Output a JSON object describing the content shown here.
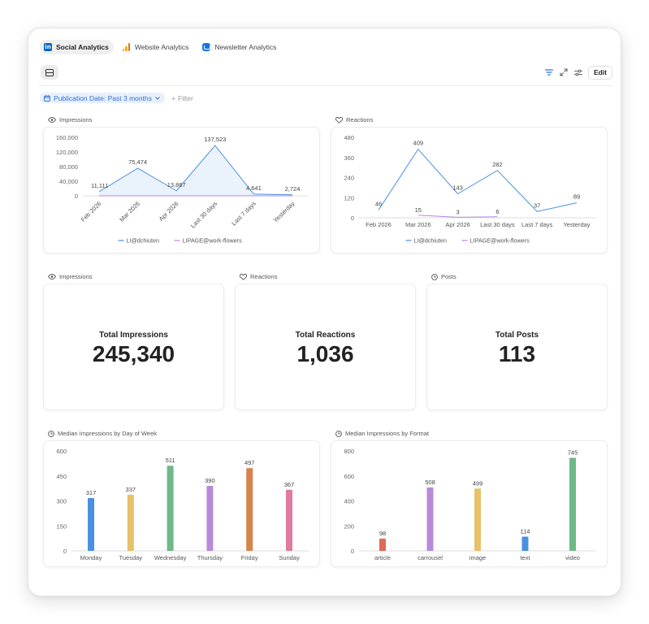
{
  "tabs": [
    {
      "label": "Social Analytics",
      "active": true,
      "icon": "linkedin-icon"
    },
    {
      "label": "Website Analytics",
      "active": false,
      "icon": "bar-chart-icon"
    },
    {
      "label": "Newsletter Analytics",
      "active": false,
      "icon": "newsletter-icon"
    }
  ],
  "toolbar": {
    "edit_label": "Edit"
  },
  "filters": {
    "chip_label": "Publication Date: Past 3 months",
    "add_label": "Filter"
  },
  "colors": {
    "blue": "#4a90e2",
    "purple": "#b98ad9",
    "green": "#6fb888",
    "yellow": "#e8c169",
    "orange": "#d9834c",
    "pink": "#e07a9e",
    "red": "#e06857",
    "accent": "#2f6fd6"
  },
  "sections": {
    "impressions": "Impressions",
    "reactions": "Reactions",
    "posts": "Posts",
    "median_day": "Median Impressions by Day of Week",
    "median_format": "Median Impressions by Format"
  },
  "kpis": {
    "impressions": {
      "label": "Total Impressions",
      "value": "245,340"
    },
    "reactions": {
      "label": "Total Reactions",
      "value": "1,036"
    },
    "posts": {
      "label": "Total Posts",
      "value": "113"
    }
  },
  "chart_data": [
    {
      "id": "impressions",
      "type": "area",
      "categories": [
        "Feb 2026",
        "Mar 2026",
        "Apr 2026",
        "Last 30 days",
        "Last 7 days",
        "Yesterday"
      ],
      "yticks": [
        "160,000",
        "120,000",
        "80,000",
        "40,000",
        "0"
      ],
      "ylim": [
        0,
        160000
      ],
      "series": [
        {
          "name": "LI@dchiuten",
          "values": [
            11111,
            75474,
            13867,
            137523,
            4641,
            2724
          ],
          "labels": [
            "11,111",
            "75,474",
            "13,867",
            "137,523",
            "4,641",
            "2,724"
          ]
        },
        {
          "name": "LIPAGE@work-flowers",
          "values": [
            0,
            0,
            0,
            0,
            0,
            0
          ]
        }
      ]
    },
    {
      "id": "reactions",
      "type": "line",
      "categories": [
        "Feb 2026",
        "Mar 2026",
        "Apr 2026",
        "Last 30 days",
        "Last 7 days",
        "Yesterday"
      ],
      "yticks": [
        "480",
        "360",
        "240",
        "120",
        "0"
      ],
      "ylim": [
        0,
        480
      ],
      "series": [
        {
          "name": "LI@dchiuten",
          "values": [
            46,
            409,
            143,
            282,
            37,
            89
          ],
          "labels": [
            "46",
            "409",
            "143",
            "282",
            "37",
            "89"
          ]
        },
        {
          "name": "LIPAGE@work-flowers",
          "values": [
            null,
            15,
            3,
            6,
            null,
            null
          ],
          "labels": [
            "",
            "15",
            "3",
            "6",
            "",
            ""
          ]
        }
      ]
    },
    {
      "id": "median_day",
      "type": "bar",
      "categories": [
        "Monday",
        "Tuesday",
        "Wednesday",
        "Thursday",
        "Friday",
        "Sunday"
      ],
      "values": [
        317,
        337,
        511,
        390,
        497,
        367
      ],
      "yticks": [
        "600",
        "450",
        "300",
        "150",
        "0"
      ],
      "ylim": [
        0,
        600
      ]
    },
    {
      "id": "median_format",
      "type": "bar",
      "categories": [
        "article",
        "carrousel",
        "image",
        "text",
        "video"
      ],
      "values": [
        98,
        508,
        499,
        114,
        745
      ],
      "yticks": [
        "800",
        "600",
        "400",
        "200",
        "0"
      ],
      "ylim": [
        0,
        800
      ]
    }
  ]
}
